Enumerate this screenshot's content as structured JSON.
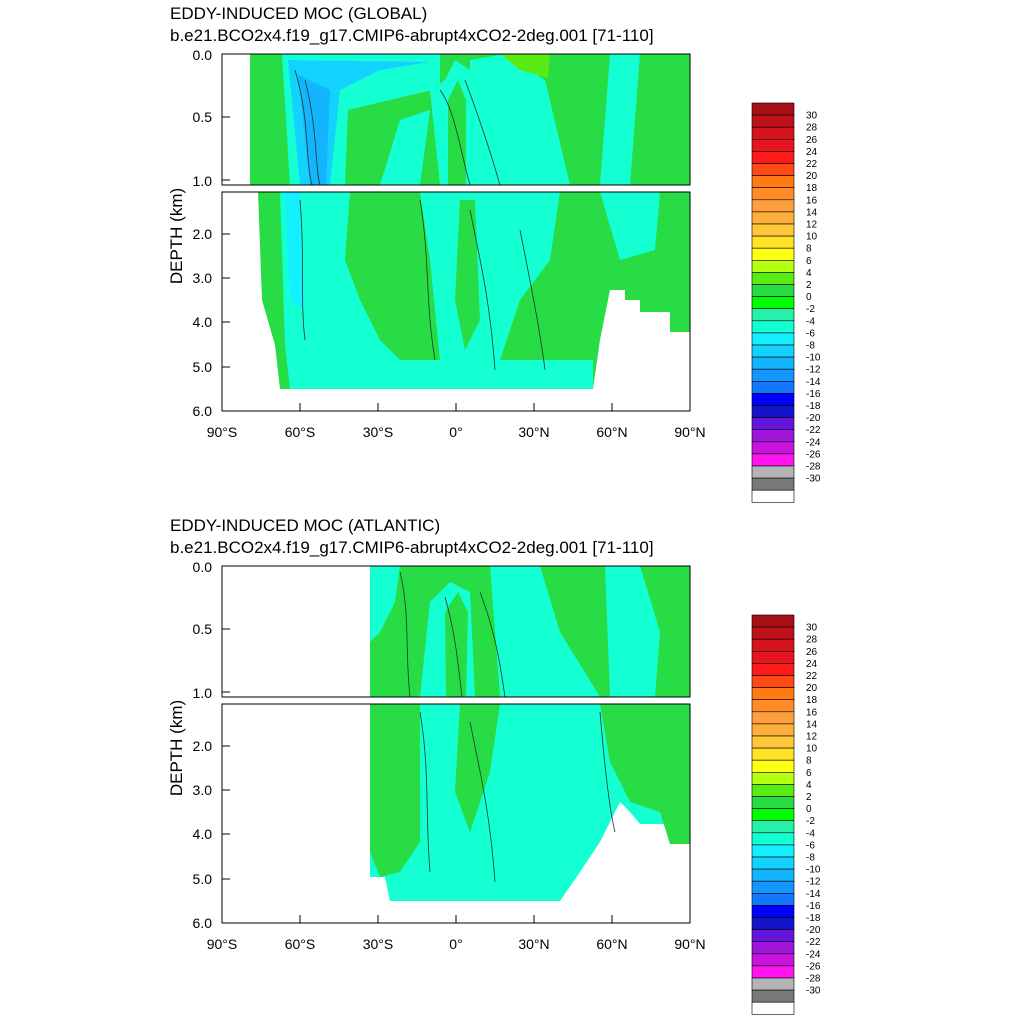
{
  "colors": {
    "levels": [
      30,
      28,
      26,
      24,
      22,
      20,
      18,
      16,
      14,
      12,
      10,
      8,
      6,
      4,
      2,
      0,
      -2,
      -4,
      -6,
      -8,
      -10,
      -12,
      -14,
      -16,
      -18,
      -20,
      -22,
      -24,
      -26,
      -28,
      -30
    ],
    "swatches": [
      "#a50f15",
      "#c0101a",
      "#d4141e",
      "#e8141e",
      "#ff1a1a",
      "#ff4a14",
      "#ff7a14",
      "#ff8c28",
      "#ff9e3c",
      "#ffb03c",
      "#ffc83c",
      "#ffe128",
      "#ffff14",
      "#b4ff14",
      "#5aeb14",
      "#28dc46",
      "#00ff00",
      "#28f0aa",
      "#14ffd2",
      "#14f0ff",
      "#14d2ff",
      "#14b4ff",
      "#1496ff",
      "#1478ff",
      "#0000ff",
      "#1414c8",
      "#6414dc",
      "#a014dc",
      "#c814dc",
      "#ff14f0",
      "#b4b4b4",
      "#787878",
      "#ffffff"
    ]
  },
  "chart_data": [
    {
      "type": "heatmap",
      "title": "EDDY-INDUCED MOC (GLOBAL)",
      "subtitle": "b.e21.BCO2x4.f19_g17.CMIP6-abrupt4xCO2-2deg.001 [71-110]",
      "ylabel": "DEPTH (km)",
      "x_ticks": [
        "90°S",
        "60°S",
        "30°S",
        "0°",
        "30°N",
        "60°N",
        "90°N"
      ],
      "y_ticks_top": [
        "0.0",
        "0.5",
        "1.0"
      ],
      "y_ticks_bottom": [
        "2.0",
        "3.0",
        "4.0",
        "5.0",
        "6.0"
      ],
      "xlim": [
        -90,
        90
      ],
      "ylim_top_km": [
        0,
        1
      ],
      "ylim_bottom_km": [
        1,
        6
      ],
      "colorbar_labels": [
        "30",
        "28",
        "26",
        "24",
        "22",
        "20",
        "18",
        "16",
        "14",
        "12",
        "10",
        "8",
        "6",
        "4",
        "2",
        "0",
        "-2",
        "-4",
        "-6",
        "-8",
        "-10",
        "-12",
        "-14",
        "-16",
        "-18",
        "-20",
        "-22",
        "-24",
        "-26",
        "-28",
        "-30"
      ]
    },
    {
      "type": "heatmap",
      "title": "EDDY-INDUCED MOC (ATLANTIC)",
      "subtitle": "b.e21.BCO2x4.f19_g17.CMIP6-abrupt4xCO2-2deg.001 [71-110]",
      "ylabel": "DEPTH (km)",
      "x_ticks": [
        "90°S",
        "60°S",
        "30°S",
        "0°",
        "30°N",
        "60°N",
        "90°N"
      ],
      "y_ticks_top": [
        "0.0",
        "0.5",
        "1.0"
      ],
      "y_ticks_bottom": [
        "2.0",
        "3.0",
        "4.0",
        "5.0",
        "6.0"
      ],
      "xlim": [
        -90,
        90
      ],
      "ylim_top_km": [
        0,
        1
      ],
      "ylim_bottom_km": [
        1,
        6
      ],
      "colorbar_labels": [
        "30",
        "28",
        "26",
        "24",
        "22",
        "20",
        "18",
        "16",
        "14",
        "12",
        "10",
        "8",
        "6",
        "4",
        "2",
        "0",
        "-2",
        "-4",
        "-6",
        "-8",
        "-10",
        "-12",
        "-14",
        "-16",
        "-18",
        "-20",
        "-22",
        "-24",
        "-26",
        "-28",
        "-30"
      ]
    }
  ]
}
